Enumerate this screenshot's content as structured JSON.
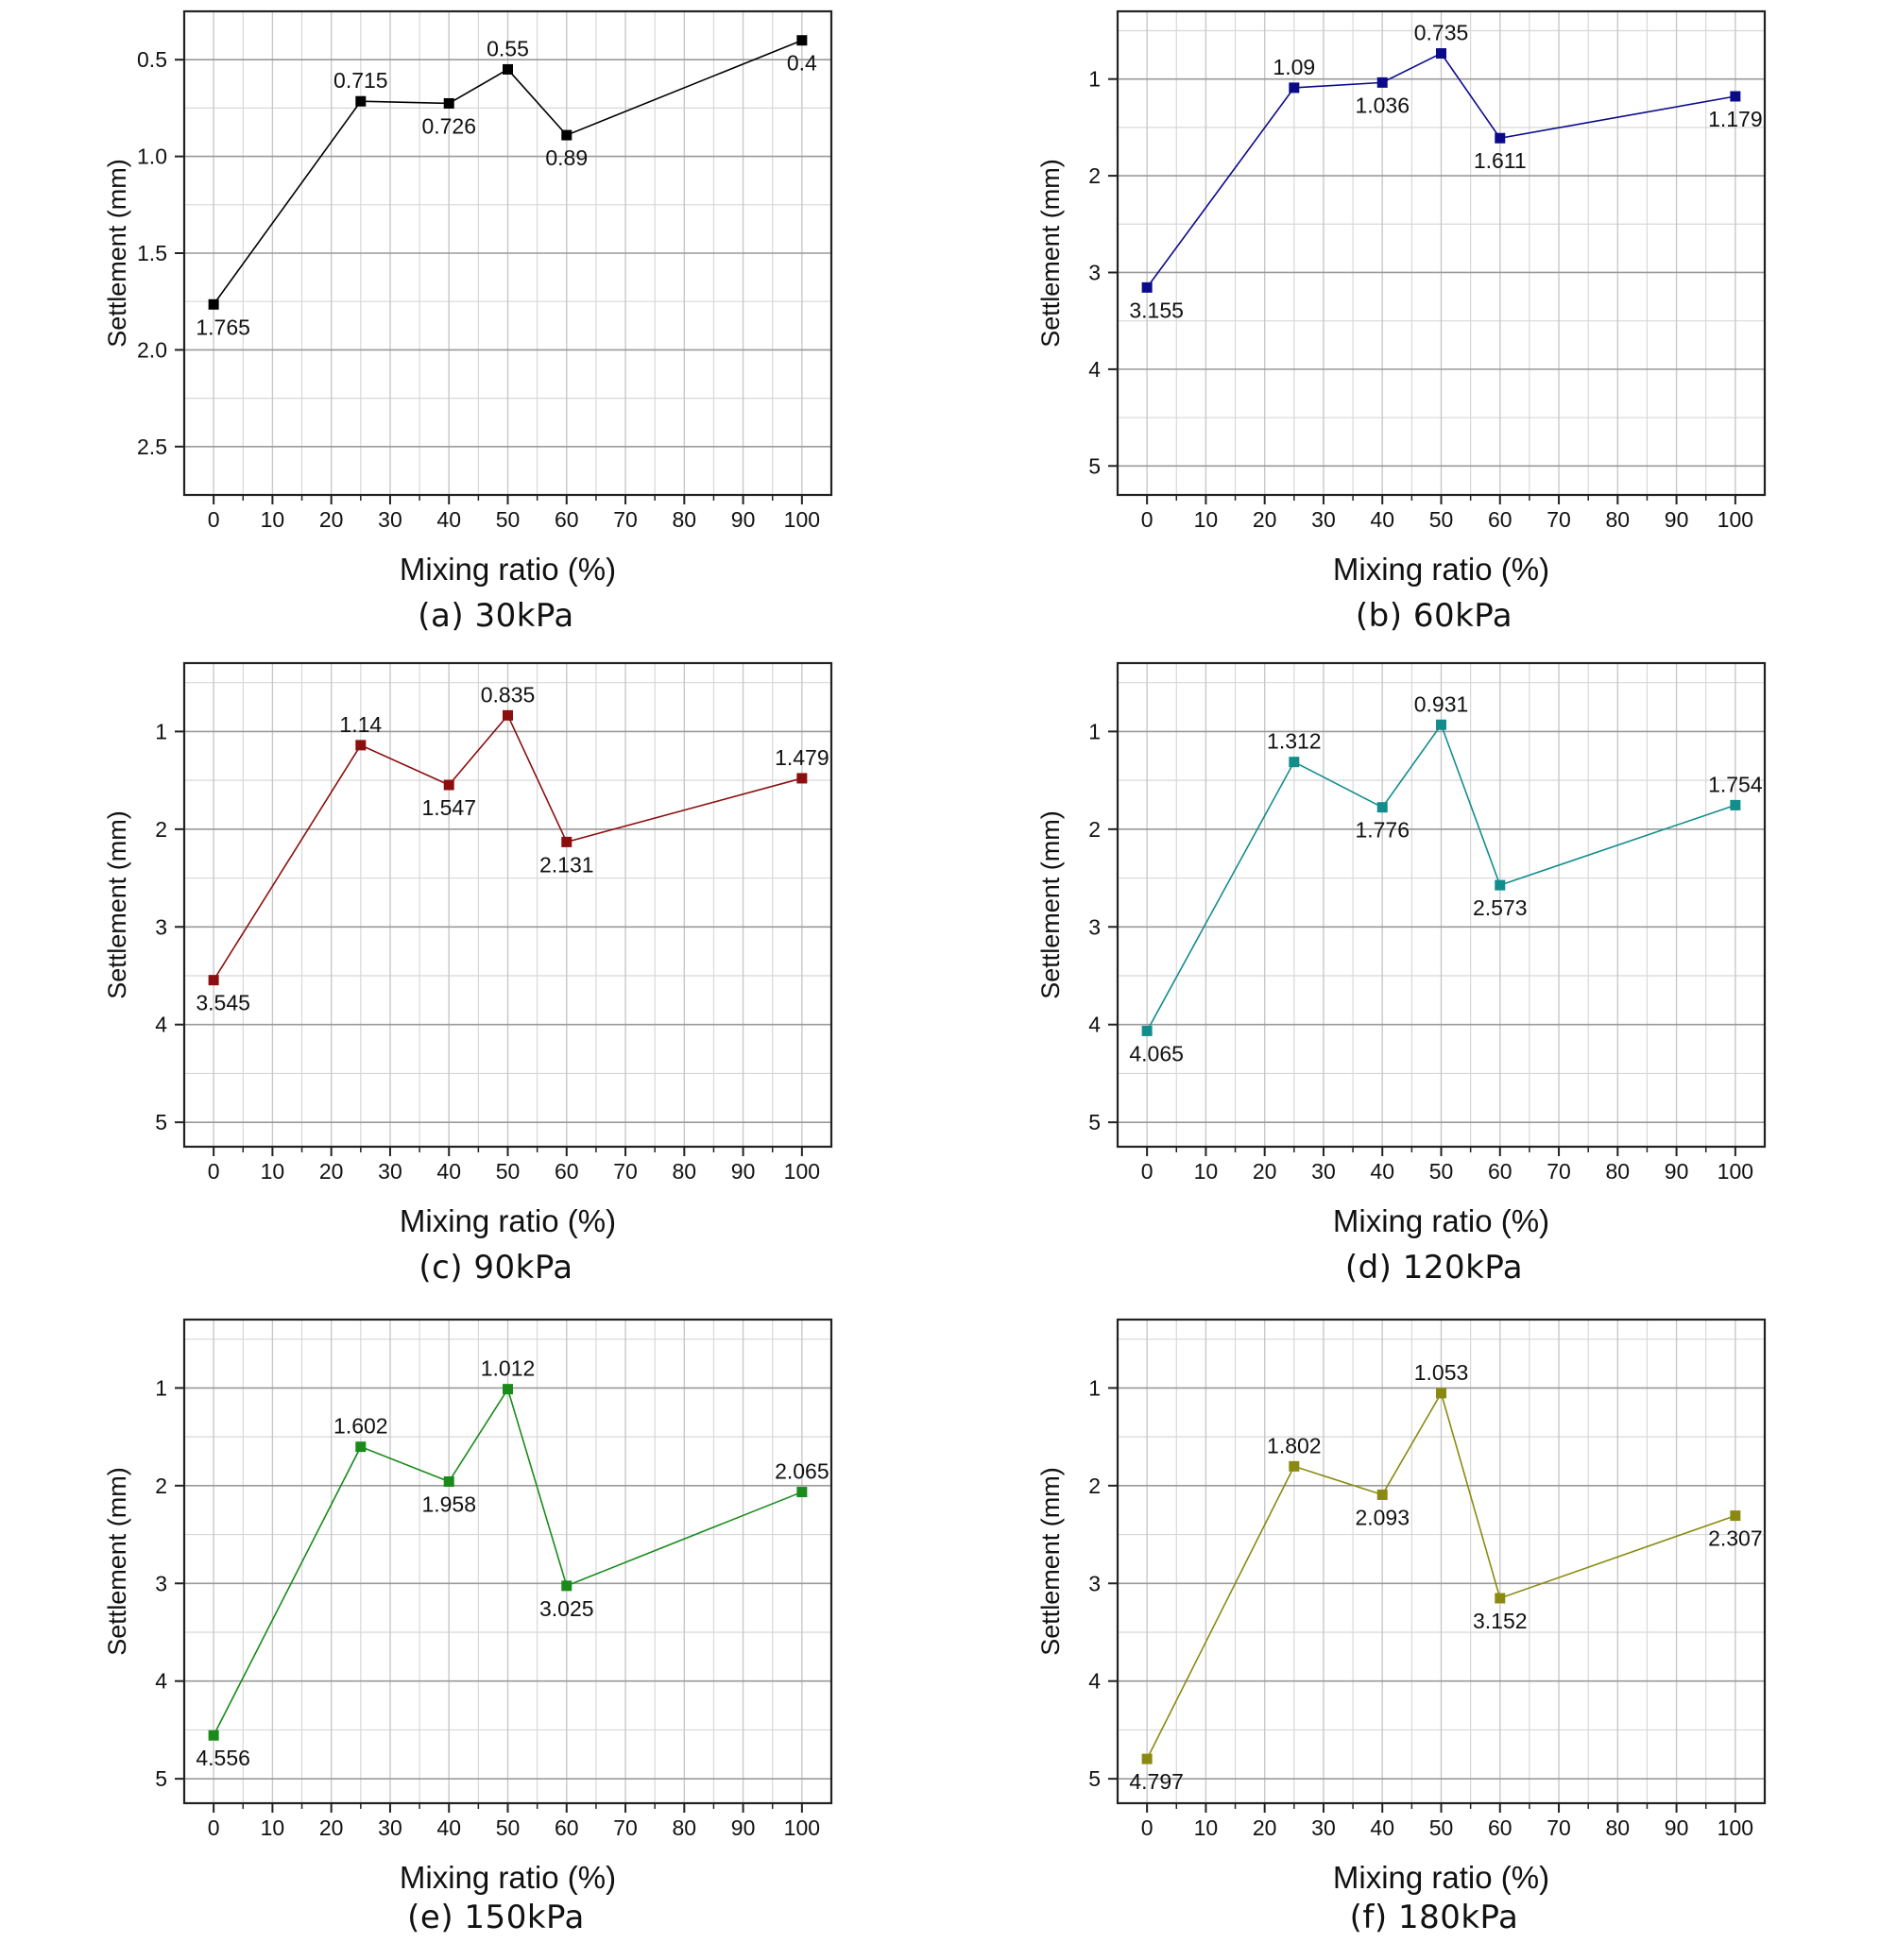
{
  "figure": {
    "panels": [
      {
        "id": "a",
        "caption": "(a) 30kPa",
        "color": "#000000"
      },
      {
        "id": "b",
        "caption": "(b) 60kPa",
        "color": "#0b0b8a"
      },
      {
        "id": "c",
        "caption": "(c) 90kPa",
        "color": "#8b0f0f"
      },
      {
        "id": "d",
        "caption": "(d) 120kPa",
        "color": "#138c8c"
      },
      {
        "id": "e",
        "caption": "(e) 150kPa",
        "color": "#1a8a1a"
      },
      {
        "id": "f",
        "caption": "(f) 180kPa",
        "color": "#8a8a10"
      }
    ]
  },
  "chart_data": [
    {
      "type": "line",
      "title": "(a) 30kPa",
      "xlabel": "Mixing ratio (%)",
      "ylabel": "Settlement (mm)",
      "xlim": [
        -5,
        105
      ],
      "ylim": [
        0.25,
        2.75
      ],
      "y_inverted": true,
      "xticks": [
        0,
        10,
        20,
        30,
        40,
        50,
        60,
        70,
        80,
        90,
        100
      ],
      "yticks": [
        0.5,
        1.0,
        1.5,
        2.0,
        2.5
      ],
      "ytick_labels": [
        "0.5",
        "1.0",
        "1.5",
        "2.0",
        "2.5"
      ],
      "series": [
        {
          "name": "30kPa",
          "marker": "square",
          "x": [
            0,
            25,
            40,
            50,
            60,
            100
          ],
          "y": [
            1.765,
            0.715,
            0.726,
            0.55,
            0.89,
            0.4
          ],
          "labels": [
            "1.765",
            "0.715",
            "0.726",
            "0.55",
            "0.89",
            "0.4"
          ],
          "label_pos": [
            "below",
            "above",
            "below",
            "above",
            "below",
            "below"
          ]
        }
      ]
    },
    {
      "type": "line",
      "title": "(b) 60kPa",
      "xlabel": "Mixing ratio (%)",
      "ylabel": "Settlement (mm)",
      "xlim": [
        -5,
        105
      ],
      "ylim": [
        0.3,
        5.3
      ],
      "y_inverted": true,
      "xticks": [
        0,
        10,
        20,
        30,
        40,
        50,
        60,
        70,
        80,
        90,
        100
      ],
      "yticks": [
        1,
        2,
        3,
        4,
        5
      ],
      "ytick_labels": [
        "1",
        "2",
        "3",
        "4",
        "5"
      ],
      "series": [
        {
          "name": "60kPa",
          "marker": "square",
          "x": [
            0,
            25,
            40,
            50,
            60,
            100
          ],
          "y": [
            3.155,
            1.09,
            1.036,
            0.735,
            1.611,
            1.179
          ],
          "labels": [
            "3.155",
            "1.09",
            "1.036",
            "0.735",
            "1.611",
            "1.179"
          ],
          "label_pos": [
            "below",
            "above",
            "below",
            "above",
            "below",
            "below"
          ]
        }
      ]
    },
    {
      "type": "line",
      "title": "(c) 90kPa",
      "xlabel": "Mixing ratio (%)",
      "ylabel": "Settlement (mm)",
      "xlim": [
        -5,
        105
      ],
      "ylim": [
        0.3,
        5.25
      ],
      "y_inverted": true,
      "xticks": [
        0,
        10,
        20,
        30,
        40,
        50,
        60,
        70,
        80,
        90,
        100
      ],
      "yticks": [
        1,
        2,
        3,
        4,
        5
      ],
      "ytick_labels": [
        "1",
        "2",
        "3",
        "4",
        "5"
      ],
      "series": [
        {
          "name": "90kPa",
          "marker": "square",
          "x": [
            0,
            25,
            40,
            50,
            60,
            100
          ],
          "y": [
            3.545,
            1.14,
            1.547,
            0.835,
            2.131,
            1.479
          ],
          "labels": [
            "3.545",
            "1.14",
            "1.547",
            "0.835",
            "2.131",
            "1.479"
          ],
          "label_pos": [
            "below",
            "above",
            "below",
            "above",
            "below",
            "above"
          ]
        }
      ]
    },
    {
      "type": "line",
      "title": "(d) 120kPa",
      "xlabel": "Mixing ratio (%)",
      "ylabel": "Settlement (mm)",
      "xlim": [
        -5,
        105
      ],
      "ylim": [
        0.3,
        5.25
      ],
      "y_inverted": true,
      "xticks": [
        0,
        10,
        20,
        30,
        40,
        50,
        60,
        70,
        80,
        90,
        100
      ],
      "yticks": [
        1,
        2,
        3,
        4,
        5
      ],
      "ytick_labels": [
        "1",
        "2",
        "3",
        "4",
        "5"
      ],
      "series": [
        {
          "name": "120kPa",
          "marker": "square",
          "x": [
            0,
            25,
            40,
            50,
            60,
            100
          ],
          "y": [
            4.065,
            1.312,
            1.776,
            0.931,
            2.573,
            1.754
          ],
          "labels": [
            "4.065",
            "1.312",
            "1.776",
            "0.931",
            "2.573",
            "1.754"
          ],
          "label_pos": [
            "below",
            "above",
            "below",
            "above",
            "below",
            "above"
          ]
        }
      ]
    },
    {
      "type": "line",
      "title": "(e) 150kPa",
      "xlabel": "Mixing ratio (%)",
      "ylabel": "Settlement (mm)",
      "xlim": [
        -5,
        105
      ],
      "ylim": [
        0.3,
        5.25
      ],
      "y_inverted": true,
      "xticks": [
        0,
        10,
        20,
        30,
        40,
        50,
        60,
        70,
        80,
        90,
        100
      ],
      "yticks": [
        1,
        2,
        3,
        4,
        5
      ],
      "ytick_labels": [
        "1",
        "2",
        "3",
        "4",
        "5"
      ],
      "series": [
        {
          "name": "150kPa",
          "marker": "square",
          "x": [
            0,
            25,
            40,
            50,
            60,
            100
          ],
          "y": [
            4.556,
            1.602,
            1.958,
            1.012,
            3.025,
            2.065
          ],
          "labels": [
            "4.556",
            "1.602",
            "1.958",
            "1.012",
            "3.025",
            "2.065"
          ],
          "label_pos": [
            "below",
            "above",
            "below",
            "above",
            "below",
            "above"
          ]
        }
      ]
    },
    {
      "type": "line",
      "title": "(f) 180kPa",
      "xlabel": "Mixing ratio (%)",
      "ylabel": "Settlement (mm)",
      "xlim": [
        -5,
        105
      ],
      "ylim": [
        0.3,
        5.25
      ],
      "y_inverted": true,
      "xticks": [
        0,
        10,
        20,
        30,
        40,
        50,
        60,
        70,
        80,
        90,
        100
      ],
      "yticks": [
        1,
        2,
        3,
        4,
        5
      ],
      "ytick_labels": [
        "1",
        "2",
        "3",
        "4",
        "5"
      ],
      "series": [
        {
          "name": "180kPa",
          "marker": "square",
          "x": [
            0,
            25,
            40,
            50,
            60,
            100
          ],
          "y": [
            4.797,
            1.802,
            2.093,
            1.053,
            3.152,
            2.307
          ],
          "labels": [
            "4.797",
            "1.802",
            "2.093",
            "1.053",
            "3.152",
            "2.307"
          ],
          "label_pos": [
            "below",
            "above",
            "below",
            "above",
            "below",
            "below"
          ]
        }
      ]
    }
  ]
}
